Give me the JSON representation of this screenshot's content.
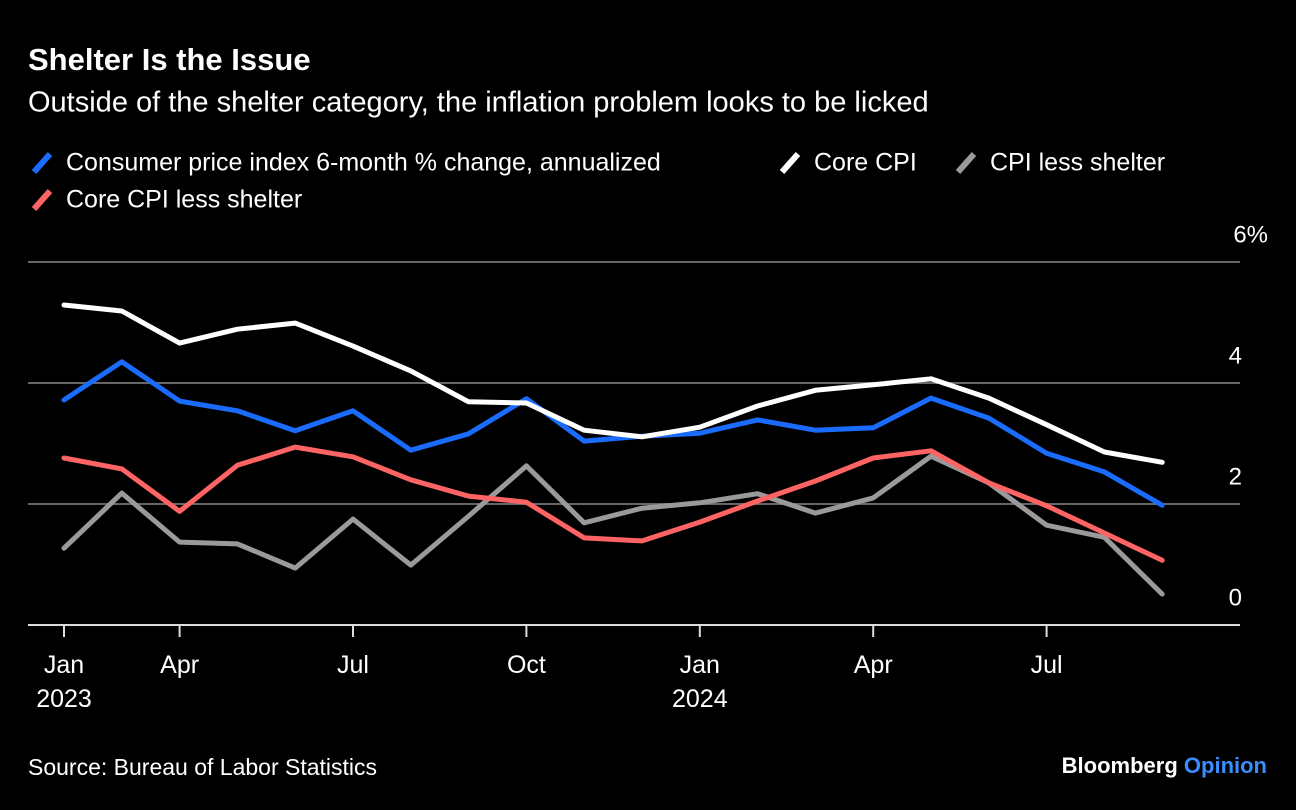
{
  "chart_data": {
    "type": "line",
    "title": "Shelter Is the Issue",
    "subtitle": "Outside of the shelter category, the inflation problem looks to be licked",
    "categories": [
      "Jan\n2023",
      null,
      "Apr",
      null,
      null,
      "Jul",
      null,
      null,
      "Oct",
      null,
      null,
      "Jan\n2024",
      null,
      null,
      "Apr",
      null,
      null,
      "Jul",
      null,
      null
    ],
    "series": [
      {
        "name": "Consumer price index 6-month % change, annualized",
        "color": "#1a6cff",
        "values": [
          3.72,
          4.35,
          3.7,
          3.54,
          3.21,
          3.54,
          2.89,
          3.16,
          3.74,
          3.04,
          3.12,
          3.17,
          3.39,
          3.22,
          3.26,
          3.75,
          3.42,
          2.84,
          2.53,
          1.98
        ]
      },
      {
        "name": "Core CPI",
        "color": "#ffffff",
        "values": [
          5.29,
          5.19,
          4.66,
          4.89,
          4.99,
          4.61,
          4.2,
          3.69,
          3.67,
          3.22,
          3.11,
          3.27,
          3.62,
          3.88,
          3.97,
          4.07,
          3.75,
          3.31,
          2.86,
          2.69
        ]
      },
      {
        "name": "CPI less shelter",
        "color": "#9a9a9a",
        "values": [
          1.27,
          2.18,
          1.37,
          1.34,
          0.94,
          1.75,
          0.99,
          1.8,
          2.63,
          1.69,
          1.93,
          2.02,
          2.17,
          1.85,
          2.1,
          2.79,
          2.35,
          1.65,
          1.45,
          0.51
        ]
      },
      {
        "name": "Core CPI less shelter",
        "color": "#ff6464",
        "values": [
          2.76,
          2.58,
          1.88,
          2.64,
          2.94,
          2.78,
          2.4,
          2.13,
          2.03,
          1.44,
          1.39,
          1.7,
          2.05,
          2.38,
          2.76,
          2.88,
          2.35,
          1.97,
          1.52,
          1.07
        ]
      }
    ],
    "ylim": [
      0,
      6
    ],
    "yticks": [
      0,
      2,
      4,
      {
        "value": 6,
        "label": "6%"
      }
    ],
    "grid": true,
    "source": "Source: Bureau of Labor Statistics",
    "credit": [
      "Bloomberg",
      "Opinion"
    ]
  }
}
